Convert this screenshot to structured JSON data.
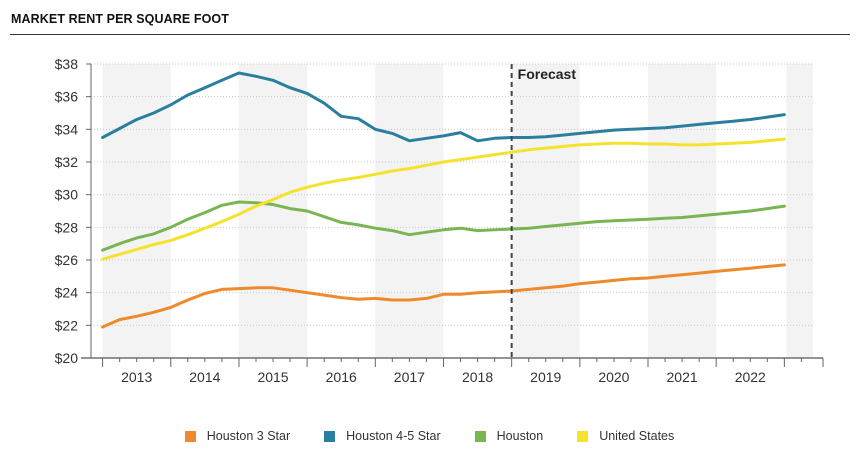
{
  "chart_data": {
    "type": "line",
    "title": "MARKET RENT PER SQUARE FOOT",
    "xlabel": "",
    "ylabel": "",
    "ylim": [
      20,
      38
    ],
    "xlim": [
      2012.33,
      2022.92
    ],
    "y_ticks": [
      "$20",
      "$22",
      "$24",
      "$26",
      "$28",
      "$30",
      "$32",
      "$34",
      "$36",
      "$38"
    ],
    "y_tick_values": [
      20,
      22,
      24,
      26,
      28,
      30,
      32,
      34,
      36,
      38
    ],
    "x_tick_labels": [
      "2013",
      "2014",
      "2015",
      "2016",
      "2017",
      "2018",
      "2019",
      "2020",
      "2021",
      "2022"
    ],
    "x_tick_values": [
      2013,
      2014,
      2015,
      2016,
      2017,
      2018,
      2019,
      2020,
      2021,
      2022
    ],
    "forecast_label": "Forecast",
    "forecast_x": 2018.5,
    "grid": true,
    "alternating_year_bands": true,
    "legend_position": "bottom",
    "x": [
      2012.5,
      2012.75,
      2013.0,
      2013.25,
      2013.5,
      2013.75,
      2014.0,
      2014.25,
      2014.5,
      2014.75,
      2015.0,
      2015.25,
      2015.5,
      2015.75,
      2016.0,
      2016.25,
      2016.5,
      2016.75,
      2017.0,
      2017.25,
      2017.5,
      2017.75,
      2018.0,
      2018.25,
      2018.5,
      2018.75,
      2019.0,
      2019.25,
      2019.5,
      2019.75,
      2020.0,
      2020.25,
      2020.5,
      2020.75,
      2021.0,
      2021.25,
      2021.5,
      2021.75,
      2022.0,
      2022.25,
      2022.5
    ],
    "series": [
      {
        "name": "Houston 3 Star",
        "color": "#ee8a2c",
        "values": [
          21.9,
          22.35,
          22.55,
          22.8,
          23.1,
          23.55,
          23.95,
          24.2,
          24.25,
          24.3,
          24.3,
          24.15,
          24.0,
          23.85,
          23.7,
          23.6,
          23.65,
          23.55,
          23.55,
          23.65,
          23.9,
          23.9,
          24.0,
          24.05,
          24.1,
          24.2,
          24.3,
          24.4,
          24.55,
          24.65,
          24.75,
          24.85,
          24.9,
          25.0,
          25.1,
          25.2,
          25.3,
          25.4,
          25.5,
          25.6,
          25.7
        ]
      },
      {
        "name": "Houston 4-5 Star",
        "color": "#2a7e9e",
        "values": [
          33.5,
          34.05,
          34.6,
          35.0,
          35.5,
          36.1,
          36.55,
          37.0,
          37.45,
          37.25,
          37.0,
          36.55,
          36.2,
          35.6,
          34.8,
          34.65,
          34.0,
          33.75,
          33.3,
          33.45,
          33.6,
          33.8,
          33.3,
          33.45,
          33.5,
          33.5,
          33.55,
          33.65,
          33.75,
          33.85,
          33.95,
          34.0,
          34.05,
          34.1,
          34.2,
          34.3,
          34.4,
          34.5,
          34.6,
          34.75,
          34.9
        ]
      },
      {
        "name": "Houston",
        "color": "#79b653",
        "values": [
          26.6,
          27.0,
          27.35,
          27.6,
          28.0,
          28.5,
          28.9,
          29.35,
          29.55,
          29.5,
          29.4,
          29.15,
          29.0,
          28.65,
          28.3,
          28.15,
          27.95,
          27.8,
          27.55,
          27.7,
          27.85,
          27.95,
          27.8,
          27.85,
          27.9,
          27.95,
          28.05,
          28.15,
          28.25,
          28.35,
          28.4,
          28.45,
          28.5,
          28.55,
          28.6,
          28.7,
          28.8,
          28.9,
          29.0,
          29.15,
          29.3
        ]
      },
      {
        "name": "United States",
        "color": "#f5e22d",
        "values": [
          26.05,
          26.35,
          26.65,
          26.95,
          27.2,
          27.55,
          27.95,
          28.35,
          28.8,
          29.3,
          29.7,
          30.15,
          30.45,
          30.7,
          30.9,
          31.05,
          31.25,
          31.45,
          31.6,
          31.8,
          32.0,
          32.15,
          32.3,
          32.45,
          32.6,
          32.75,
          32.85,
          32.95,
          33.05,
          33.1,
          33.15,
          33.15,
          33.1,
          33.1,
          33.05,
          33.05,
          33.1,
          33.15,
          33.2,
          33.3,
          33.4
        ]
      }
    ]
  }
}
